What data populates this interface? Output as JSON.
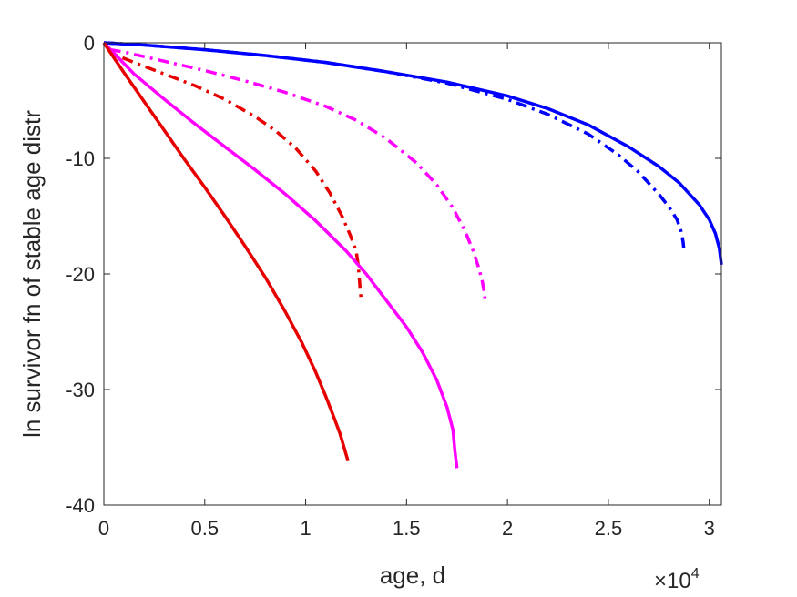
{
  "chart_data": {
    "type": "line",
    "title": "",
    "xlabel": "age, d",
    "ylabel": "ln survivor fn of stable age distr",
    "x_multiplier": {
      "base": "×10",
      "exponent": "4"
    },
    "xlim": [
      0,
      30600
    ],
    "ylim": [
      -40,
      0
    ],
    "x_ticks": [
      0,
      5000,
      10000,
      15000,
      20000,
      25000,
      30000
    ],
    "x_tick_labels": [
      "0",
      "0.5",
      "1",
      "1.5",
      "2",
      "2.5",
      "3"
    ],
    "y_ticks": [
      0,
      -10,
      -20,
      -30,
      -40
    ],
    "y_tick_labels": [
      "0",
      "-10",
      "-20",
      "-30",
      "-40"
    ],
    "grid": false,
    "box": true,
    "series": [
      {
        "color": "#0000ff",
        "style": "solid",
        "x": [
          0,
          2000,
          5000,
          8000,
          11000,
          14000,
          17000,
          20000,
          22000,
          24000,
          26000,
          27500,
          28500,
          29500,
          30000,
          30300,
          30500,
          30600
        ],
        "y": [
          0,
          -0.2,
          -0.6,
          -1.1,
          -1.7,
          -2.5,
          -3.4,
          -4.6,
          -5.7,
          -7.1,
          -9.0,
          -10.7,
          -12.1,
          -14.0,
          -15.3,
          -16.5,
          -17.8,
          -19.2
        ]
      },
      {
        "color": "#0000ff",
        "style": "dashdot",
        "x": [
          0,
          2000,
          5000,
          8000,
          11000,
          14000,
          17000,
          20000,
          22000,
          24000,
          25500,
          26500,
          27500,
          28000,
          28400,
          28600,
          28700,
          28750
        ],
        "y": [
          0,
          -0.2,
          -0.6,
          -1.1,
          -1.7,
          -2.5,
          -3.5,
          -4.9,
          -6.2,
          -7.9,
          -9.7,
          -11.2,
          -13.1,
          -14.2,
          -15.3,
          -16.3,
          -17.2,
          -18.0
        ]
      },
      {
        "color": "#ff00ff",
        "style": "dashdot",
        "x": [
          300,
          1000,
          3000,
          5000,
          7000,
          9000,
          11000,
          12500,
          14000,
          15500,
          16500,
          17300,
          17900,
          18300,
          18600,
          18750,
          18850,
          18900
        ],
        "y": [
          -0.6,
          -0.8,
          -1.6,
          -2.4,
          -3.3,
          -4.3,
          -5.5,
          -6.7,
          -8.3,
          -10.4,
          -12.3,
          -14.3,
          -16.3,
          -18.0,
          -19.6,
          -20.6,
          -21.6,
          -22.4
        ]
      },
      {
        "color": "#e60000",
        "style": "dashdot",
        "x": [
          0,
          500,
          1500,
          3000,
          4500,
          6000,
          7500,
          8500,
          9500,
          10500,
          11200,
          11800,
          12200,
          12500,
          12600,
          12650,
          12700,
          12750
        ],
        "y": [
          0,
          -1.0,
          -1.7,
          -2.7,
          -3.7,
          -4.9,
          -6.4,
          -7.6,
          -9.1,
          -11.1,
          -13.0,
          -15.0,
          -16.6,
          -18.0,
          -19.2,
          -20.2,
          -21.3,
          -22.2
        ]
      },
      {
        "color": "#ff00ff",
        "style": "solid",
        "x": [
          0,
          1500,
          3000,
          4500,
          6000,
          7500,
          9000,
          10500,
          12000,
          13000,
          14000,
          15000,
          15800,
          16500,
          17000,
          17300,
          17400,
          17500
        ],
        "y": [
          0,
          -2.7,
          -4.9,
          -7.0,
          -9.0,
          -11.0,
          -13.1,
          -15.4,
          -18.0,
          -20.0,
          -22.3,
          -24.6,
          -26.8,
          -29.2,
          -31.5,
          -33.5,
          -35.4,
          -36.8
        ]
      },
      {
        "color": "#e60000",
        "style": "solid",
        "x": [
          0,
          1000,
          2000,
          3000,
          4000,
          5000,
          6000,
          7000,
          8000,
          9000,
          9800,
          10500,
          11000,
          11400,
          11700,
          11900,
          12000,
          12100
        ],
        "y": [
          0,
          -2.6,
          -5.1,
          -7.6,
          -10.1,
          -12.5,
          -15.0,
          -17.6,
          -20.3,
          -23.3,
          -25.9,
          -28.5,
          -30.6,
          -32.4,
          -33.8,
          -35.0,
          -35.6,
          -36.2
        ]
      }
    ]
  }
}
